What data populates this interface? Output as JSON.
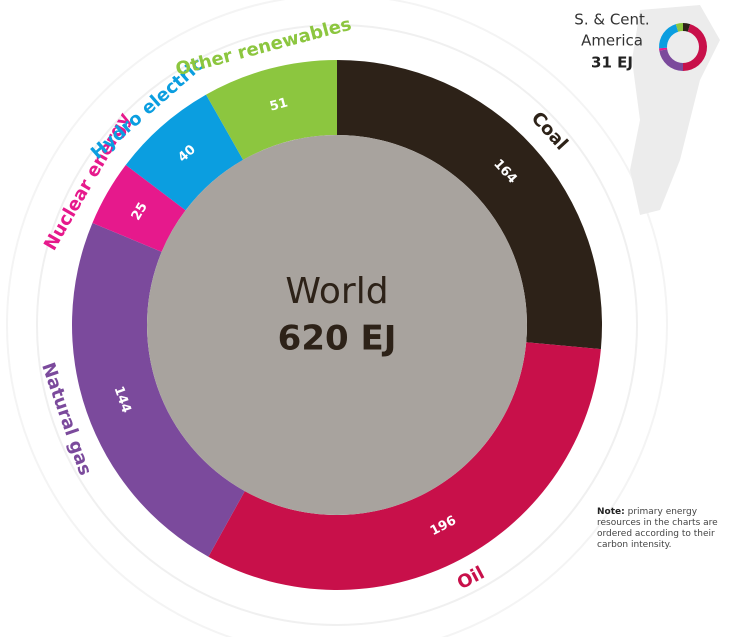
{
  "chart_data": [
    {
      "type": "donut",
      "center_title": "World",
      "center_value": "620 EJ",
      "categories": [
        "Coal",
        "Oil",
        "Natural gas",
        "Nuclear energy",
        "Hydro electric",
        "Other renewables"
      ],
      "values": [
        164,
        196,
        144,
        25,
        40,
        51
      ],
      "colors": [
        "#2d2218",
        "#c8104a",
        "#7b4a9c",
        "#e6198c",
        "#0b9ee0",
        "#8cc63f"
      ],
      "inner_color": "#a8a39e"
    },
    {
      "type": "donut",
      "title": [
        "S. & Cent.",
        "America"
      ],
      "total": "31 EJ",
      "categories": [
        "Coal",
        "Oil",
        "Natural gas",
        "Nuclear energy",
        "Hydro electric",
        "Other renewables"
      ],
      "values": [
        1.5,
        14,
        7,
        0.5,
        6.5,
        1.5
      ],
      "colors": [
        "#2d2218",
        "#c8104a",
        "#7b4a9c",
        "#e6198c",
        "#0b9ee0",
        "#8cc63f"
      ]
    }
  ],
  "note": {
    "label": "Note:",
    "text": "primary energy resources in the charts are ordered according to their carbon intensity."
  }
}
